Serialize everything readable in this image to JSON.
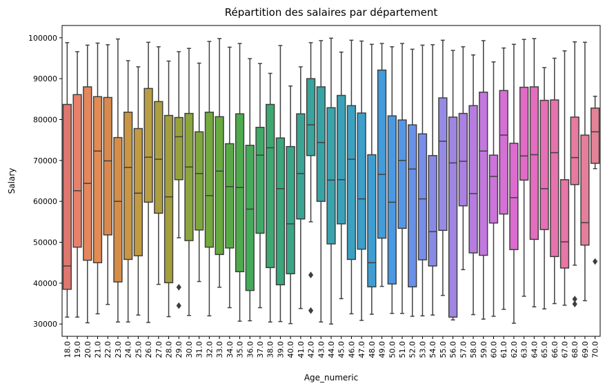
{
  "chart_data": {
    "type": "box",
    "title": "Répartition des salaires par département",
    "xlabel": "Age_numeric",
    "ylabel": "Salary",
    "ylim": [
      27000,
      103000
    ],
    "yticks": [
      30000,
      40000,
      50000,
      60000,
      70000,
      80000,
      90000,
      100000
    ],
    "ytick_labels": [
      "30000",
      "40000",
      "50000",
      "60000",
      "70000",
      "80000",
      "90000",
      "100000"
    ],
    "grid": false,
    "categories": [
      "18.0",
      "19.0",
      "20.0",
      "21.0",
      "22.0",
      "23.0",
      "24.0",
      "25.0",
      "26.0",
      "27.0",
      "28.0",
      "29.0",
      "30.0",
      "31.0",
      "32.0",
      "33.0",
      "34.0",
      "35.0",
      "36.0",
      "37.0",
      "38.0",
      "39.0",
      "40.0",
      "41.0",
      "42.0",
      "43.0",
      "44.0",
      "45.0",
      "46.0",
      "47.0",
      "48.0",
      "49.0",
      "50.0",
      "51.0",
      "52.0",
      "53.0",
      "54.0",
      "55.0",
      "56.0",
      "57.0",
      "58.0",
      "59.0",
      "60.0",
      "61.0",
      "62.0",
      "63.0",
      "64.0",
      "65.0",
      "66.0",
      "67.0",
      "68.0",
      "69.0",
      "70.0"
    ],
    "boxes": [
      {
        "whisker_low": 31700,
        "q1": 38500,
        "median": 44200,
        "q3": 83700,
        "whisker_high": 98800,
        "outliers": []
      },
      {
        "whisker_low": 31700,
        "q1": 48800,
        "median": 62600,
        "q3": 86100,
        "whisker_high": 96600,
        "outliers": []
      },
      {
        "whisker_low": 30300,
        "q1": 45600,
        "median": 64400,
        "q3": 88000,
        "whisker_high": 98200,
        "outliers": []
      },
      {
        "whisker_low": 32500,
        "q1": 45000,
        "median": 72300,
        "q3": 85600,
        "whisker_high": 98700,
        "outliers": []
      },
      {
        "whisker_low": 34800,
        "q1": 51800,
        "median": 69900,
        "q3": 85400,
        "whisker_high": 98300,
        "outliers": []
      },
      {
        "whisker_low": 30500,
        "q1": 40300,
        "median": 60000,
        "q3": 75600,
        "whisker_high": 99700,
        "outliers": []
      },
      {
        "whisker_low": 30500,
        "q1": 45800,
        "median": 68300,
        "q3": 81800,
        "whisker_high": 94400,
        "outliers": []
      },
      {
        "whisker_low": 32200,
        "q1": 46700,
        "median": 62000,
        "q3": 77800,
        "whisker_high": 92900,
        "outliers": []
      },
      {
        "whisker_low": 30400,
        "q1": 59800,
        "median": 70800,
        "q3": 87600,
        "whisker_high": 98900,
        "outliers": []
      },
      {
        "whisker_low": 39700,
        "q1": 57100,
        "median": 70300,
        "q3": 84400,
        "whisker_high": 97800,
        "outliers": []
      },
      {
        "whisker_low": 31800,
        "q1": 40100,
        "median": 61100,
        "q3": 81000,
        "whisker_high": 94300,
        "outliers": []
      },
      {
        "whisker_low": 51100,
        "q1": 65300,
        "median": 75800,
        "q3": 80500,
        "whisker_high": 96600,
        "outliers": [
          39000,
          34500
        ]
      },
      {
        "whisker_low": 32100,
        "q1": 50400,
        "median": 68400,
        "q3": 81500,
        "whisker_high": 97400,
        "outliers": []
      },
      {
        "whisker_low": 40400,
        "q1": 53000,
        "median": 66800,
        "q3": 77000,
        "whisker_high": 93800,
        "outliers": []
      },
      {
        "whisker_low": 32000,
        "q1": 48800,
        "median": 61400,
        "q3": 81800,
        "whisker_high": 99100,
        "outliers": []
      },
      {
        "whisker_low": 39000,
        "q1": 47000,
        "median": 67400,
        "q3": 80700,
        "whisker_high": 99800,
        "outliers": []
      },
      {
        "whisker_low": 34000,
        "q1": 48600,
        "median": 63600,
        "q3": 74100,
        "whisker_high": 97700,
        "outliers": []
      },
      {
        "whisker_low": 30700,
        "q1": 42800,
        "median": 63400,
        "q3": 81400,
        "whisker_high": 98600,
        "outliers": []
      },
      {
        "whisker_low": 30800,
        "q1": 38200,
        "median": 58100,
        "q3": 73700,
        "whisker_high": 94900,
        "outliers": []
      },
      {
        "whisker_low": 34000,
        "q1": 52200,
        "median": 71300,
        "q3": 78100,
        "whisker_high": 93700,
        "outliers": []
      },
      {
        "whisker_low": 30500,
        "q1": 43800,
        "median": 73100,
        "q3": 83700,
        "whisker_high": 91300,
        "outliers": []
      },
      {
        "whisker_low": 30600,
        "q1": 39600,
        "median": 63100,
        "q3": 75500,
        "whisker_high": 98100,
        "outliers": []
      },
      {
        "whisker_low": 30100,
        "q1": 42300,
        "median": 54500,
        "q3": 73400,
        "whisker_high": 88200,
        "outliers": []
      },
      {
        "whisker_low": 33800,
        "q1": 55700,
        "median": 66800,
        "q3": 81400,
        "whisker_high": 92900,
        "outliers": []
      },
      {
        "whisker_low": 55000,
        "q1": 71200,
        "median": 78700,
        "q3": 90000,
        "whisker_high": 98800,
        "outliers": [
          42000,
          33300
        ]
      },
      {
        "whisker_low": 30500,
        "q1": 60000,
        "median": 74400,
        "q3": 88000,
        "whisker_high": 99300,
        "outliers": []
      },
      {
        "whisker_low": 30000,
        "q1": 49600,
        "median": 65200,
        "q3": 82900,
        "whisker_high": 99900,
        "outliers": []
      },
      {
        "whisker_low": 36200,
        "q1": 54500,
        "median": 65300,
        "q3": 85900,
        "whisker_high": 96500,
        "outliers": []
      },
      {
        "whisker_low": 32500,
        "q1": 45800,
        "median": 70300,
        "q3": 83400,
        "whisker_high": 99400,
        "outliers": []
      },
      {
        "whisker_low": 30900,
        "q1": 48300,
        "median": 60600,
        "q3": 81600,
        "whisker_high": 99200,
        "outliers": []
      },
      {
        "whisker_low": 32400,
        "q1": 39100,
        "median": 45000,
        "q3": 71400,
        "whisker_high": 98400,
        "outliers": []
      },
      {
        "whisker_low": 39200,
        "q1": 51000,
        "median": 66600,
        "q3": 92100,
        "whisker_high": 98600,
        "outliers": []
      },
      {
        "whisker_low": 32600,
        "q1": 39800,
        "median": 59800,
        "q3": 80900,
        "whisker_high": 97800,
        "outliers": []
      },
      {
        "whisker_low": 32600,
        "q1": 53400,
        "median": 70000,
        "q3": 79900,
        "whisker_high": 98600,
        "outliers": []
      },
      {
        "whisker_low": 31900,
        "q1": 39100,
        "median": 67900,
        "q3": 78700,
        "whisker_high": 97200,
        "outliers": []
      },
      {
        "whisker_low": 32000,
        "q1": 45700,
        "median": 60600,
        "q3": 76500,
        "whisker_high": 98200,
        "outliers": []
      },
      {
        "whisker_low": 32200,
        "q1": 44200,
        "median": 52600,
        "q3": 71200,
        "whisker_high": 98300,
        "outliers": []
      },
      {
        "whisker_low": 37000,
        "q1": 52900,
        "median": 74700,
        "q3": 85300,
        "whisker_high": 99400,
        "outliers": []
      },
      {
        "whisker_low": 31000,
        "q1": 31700,
        "median": 69400,
        "q3": 80600,
        "whisker_high": 96900,
        "outliers": []
      },
      {
        "whisker_low": 43300,
        "q1": 58900,
        "median": 69800,
        "q3": 81500,
        "whisker_high": 97800,
        "outliers": []
      },
      {
        "whisker_low": 32300,
        "q1": 47400,
        "median": 61900,
        "q3": 83400,
        "whisker_high": 95800,
        "outliers": []
      },
      {
        "whisker_low": 31200,
        "q1": 46800,
        "median": 72300,
        "q3": 86700,
        "whisker_high": 99300,
        "outliers": []
      },
      {
        "whisker_low": 31900,
        "q1": 54700,
        "median": 66100,
        "q3": 71300,
        "whisker_high": 94100,
        "outliers": []
      },
      {
        "whisker_low": 33600,
        "q1": 56900,
        "median": 76200,
        "q3": 87100,
        "whisker_high": 97500,
        "outliers": []
      },
      {
        "whisker_low": 30200,
        "q1": 48200,
        "median": 60900,
        "q3": 74200,
        "whisker_high": 98400,
        "outliers": []
      },
      {
        "whisker_low": 36800,
        "q1": 65200,
        "median": 71100,
        "q3": 87900,
        "whisker_high": 99600,
        "outliers": []
      },
      {
        "whisker_low": 34200,
        "q1": 50700,
        "median": 71400,
        "q3": 88000,
        "whisker_high": 99800,
        "outliers": []
      },
      {
        "whisker_low": 33700,
        "q1": 53100,
        "median": 63100,
        "q3": 84700,
        "whisker_high": 92700,
        "outliers": []
      },
      {
        "whisker_low": 35000,
        "q1": 46500,
        "median": 71900,
        "q3": 84800,
        "whisker_high": 95000,
        "outliers": []
      },
      {
        "whisker_low": 34600,
        "q1": 43700,
        "median": 50100,
        "q3": 65300,
        "whisker_high": 96800,
        "outliers": []
      },
      {
        "whisker_low": 44400,
        "q1": 64100,
        "median": 70700,
        "q3": 80600,
        "whisker_high": 99000,
        "outliers": [
          36100,
          34900
        ]
      },
      {
        "whisker_low": 35700,
        "q1": 49300,
        "median": 54800,
        "q3": 76200,
        "whisker_high": 98900,
        "outliers": []
      },
      {
        "whisker_low": 68000,
        "q1": 69300,
        "median": 77000,
        "q3": 82800,
        "whisker_high": 85700,
        "outliers": [
          45300
        ]
      }
    ],
    "colors": [
      "#e0776f",
      "#e8806a",
      "#e6865c",
      "#e48a52",
      "#d9894e",
      "#d68d48",
      "#c99645",
      "#c29a41",
      "#b99d42",
      "#ad9f40",
      "#a39f3e",
      "#98a23d",
      "#8ca53c",
      "#7fa73c",
      "#74a93e",
      "#66aa40",
      "#58ab44",
      "#4eab4c",
      "#44ab58",
      "#3faa65",
      "#3da872",
      "#3ba77d",
      "#3aa688",
      "#39a592",
      "#38a49b",
      "#38a3a5",
      "#39a3ae",
      "#3aa2b8",
      "#3ba1c1",
      "#3d9fca",
      "#3e9ed3",
      "#439cdb",
      "#4a99e3",
      "#5696e7",
      "#6a91e8",
      "#798ee8",
      "#888ae6",
      "#968ae5",
      "#a085e3",
      "#ab80e2",
      "#b77ce0",
      "#c278de",
      "#cc74db",
      "#d570d5",
      "#dc6ccf",
      "#e16bc7",
      "#e46dbe",
      "#e670b6",
      "#e673ae",
      "#e677a7",
      "#e67aa1",
      "#e57e9b",
      "#e58297"
    ]
  }
}
